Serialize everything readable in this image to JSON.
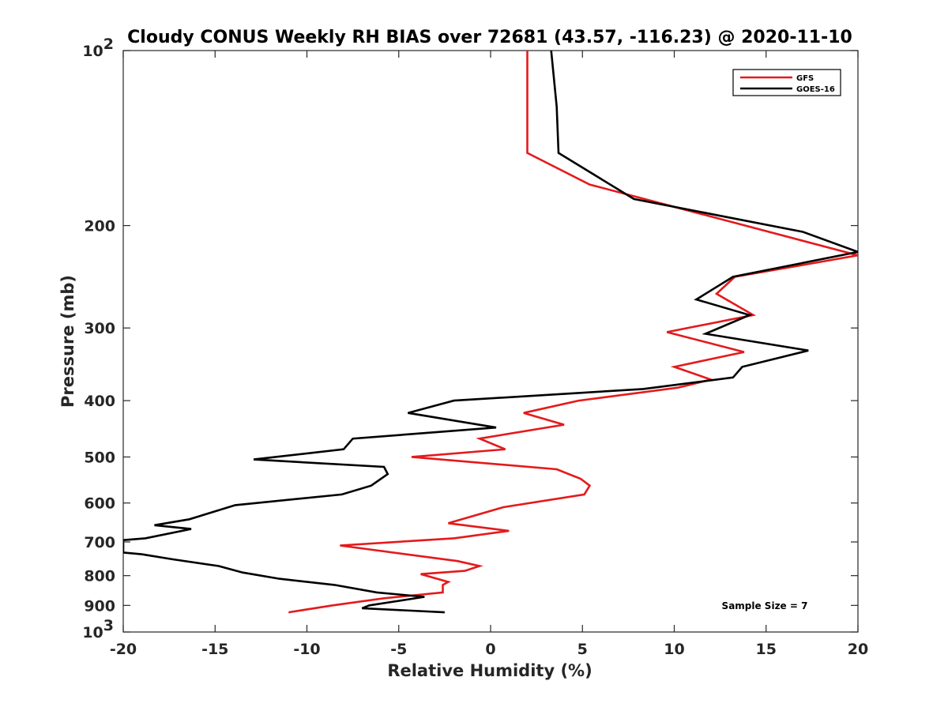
{
  "chart_data": {
    "type": "line",
    "title": "Cloudy CONUS Weekly RH BIAS over 72681 (43.57, -116.23) @ 2020-11-10",
    "xlabel": "Relative Humidity (%)",
    "ylabel": "Pressure (mb)",
    "xlim": [
      -20,
      20
    ],
    "ylim": [
      100,
      1000
    ],
    "yscale": "log",
    "y_reversed": true,
    "grid": false,
    "legend_position": "top-right",
    "x_ticks": [
      -20,
      -15,
      -10,
      -5,
      0,
      5,
      10,
      15,
      20
    ],
    "y_ticks": [
      {
        "value": 100,
        "label": "10",
        "exp": "2"
      },
      {
        "value": 200,
        "label": "200",
        "exp": ""
      },
      {
        "value": 300,
        "label": "300",
        "exp": ""
      },
      {
        "value": 400,
        "label": "400",
        "exp": ""
      },
      {
        "value": 500,
        "label": "500",
        "exp": ""
      },
      {
        "value": 600,
        "label": "600",
        "exp": ""
      },
      {
        "value": 700,
        "label": "700",
        "exp": ""
      },
      {
        "value": 800,
        "label": "800",
        "exp": ""
      },
      {
        "value": 900,
        "label": "900",
        "exp": ""
      },
      {
        "value": 1000,
        "label": "10",
        "exp": "3"
      }
    ],
    "annotation": "Sample Size = 7",
    "series": [
      {
        "name": "GFS",
        "color": "#e41a1c",
        "points": [
          [
            2.0,
            100
          ],
          [
            2.0,
            150
          ],
          [
            5.4,
            170
          ],
          [
            20.0,
            225
          ],
          [
            13.3,
            245
          ],
          [
            12.3,
            262
          ],
          [
            14.3,
            285
          ],
          [
            9.6,
            305
          ],
          [
            13.8,
            330
          ],
          [
            10.0,
            350
          ],
          [
            12.0,
            368
          ],
          [
            10.2,
            380
          ],
          [
            4.8,
            400
          ],
          [
            1.8,
            420
          ],
          [
            4.0,
            440
          ],
          [
            -0.6,
            465
          ],
          [
            0.8,
            485
          ],
          [
            -4.3,
            500
          ],
          [
            3.6,
            525
          ],
          [
            4.9,
            545
          ],
          [
            5.4,
            560
          ],
          [
            5.1,
            580
          ],
          [
            0.7,
            610
          ],
          [
            -2.3,
            650
          ],
          [
            1.0,
            670
          ],
          [
            -2.0,
            690
          ],
          [
            -8.2,
            710
          ],
          [
            -1.8,
            755
          ],
          [
            -0.6,
            770
          ],
          [
            -1.4,
            785
          ],
          [
            -3.8,
            795
          ],
          [
            -2.3,
            820
          ],
          [
            -2.6,
            830
          ],
          [
            -2.6,
            855
          ],
          [
            -5.8,
            875
          ],
          [
            -8.6,
            900
          ],
          [
            -11.0,
            925
          ]
        ]
      },
      {
        "name": "GOES-16",
        "color": "#000000",
        "points": [
          [
            3.3,
            100
          ],
          [
            3.6,
            125
          ],
          [
            3.7,
            150
          ],
          [
            7.8,
            180
          ],
          [
            17.0,
            205
          ],
          [
            20.0,
            222
          ],
          [
            13.2,
            245
          ],
          [
            11.2,
            268
          ],
          [
            14.1,
            285
          ],
          [
            11.7,
            307
          ],
          [
            17.3,
            328
          ],
          [
            13.7,
            350
          ],
          [
            13.2,
            365
          ],
          [
            8.3,
            382
          ],
          [
            -2.0,
            400
          ],
          [
            -4.5,
            420
          ],
          [
            0.3,
            445
          ],
          [
            -7.5,
            465
          ],
          [
            -8.0,
            485
          ],
          [
            -12.9,
            505
          ],
          [
            -5.8,
            520
          ],
          [
            -5.6,
            535
          ],
          [
            -6.5,
            560
          ],
          [
            -8.1,
            580
          ],
          [
            -13.9,
            605
          ],
          [
            -16.4,
            640
          ],
          [
            -18.3,
            655
          ],
          [
            -16.3,
            665
          ],
          [
            -18.8,
            690
          ],
          [
            -20.0,
            695
          ],
          [
            -20.0,
            730
          ],
          [
            -19.0,
            735
          ],
          [
            -17.3,
            750
          ],
          [
            -14.8,
            770
          ],
          [
            -13.5,
            790
          ],
          [
            -11.5,
            810
          ],
          [
            -8.5,
            830
          ],
          [
            -6.2,
            855
          ],
          [
            -3.6,
            870
          ],
          [
            -6.6,
            900
          ],
          [
            -7.0,
            910
          ],
          [
            -2.5,
            925
          ]
        ]
      }
    ]
  }
}
